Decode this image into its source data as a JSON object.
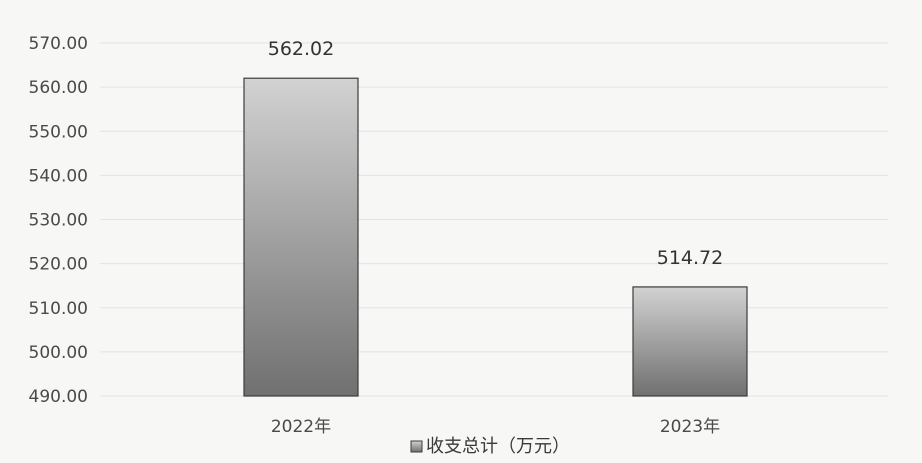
{
  "chart_data": {
    "type": "bar",
    "categories": [
      "2022年",
      "2023年"
    ],
    "series": [
      {
        "name": "收支总计（万元）",
        "values": [
          562.02,
          514.72
        ]
      }
    ],
    "data_labels": [
      "562.02",
      "514.72"
    ],
    "y_ticks": [
      "490.00",
      "500.00",
      "510.00",
      "520.00",
      "530.00",
      "540.00",
      "550.00",
      "560.00",
      "570.00"
    ],
    "ylim": [
      490,
      570
    ],
    "grid": true,
    "legend_position": "bottom",
    "colors": {
      "bar_top": "#d2d2d2",
      "bar_bottom": "#707070",
      "bar_stroke": "#3c3c3c",
      "grid": "#e3e3e3"
    }
  }
}
